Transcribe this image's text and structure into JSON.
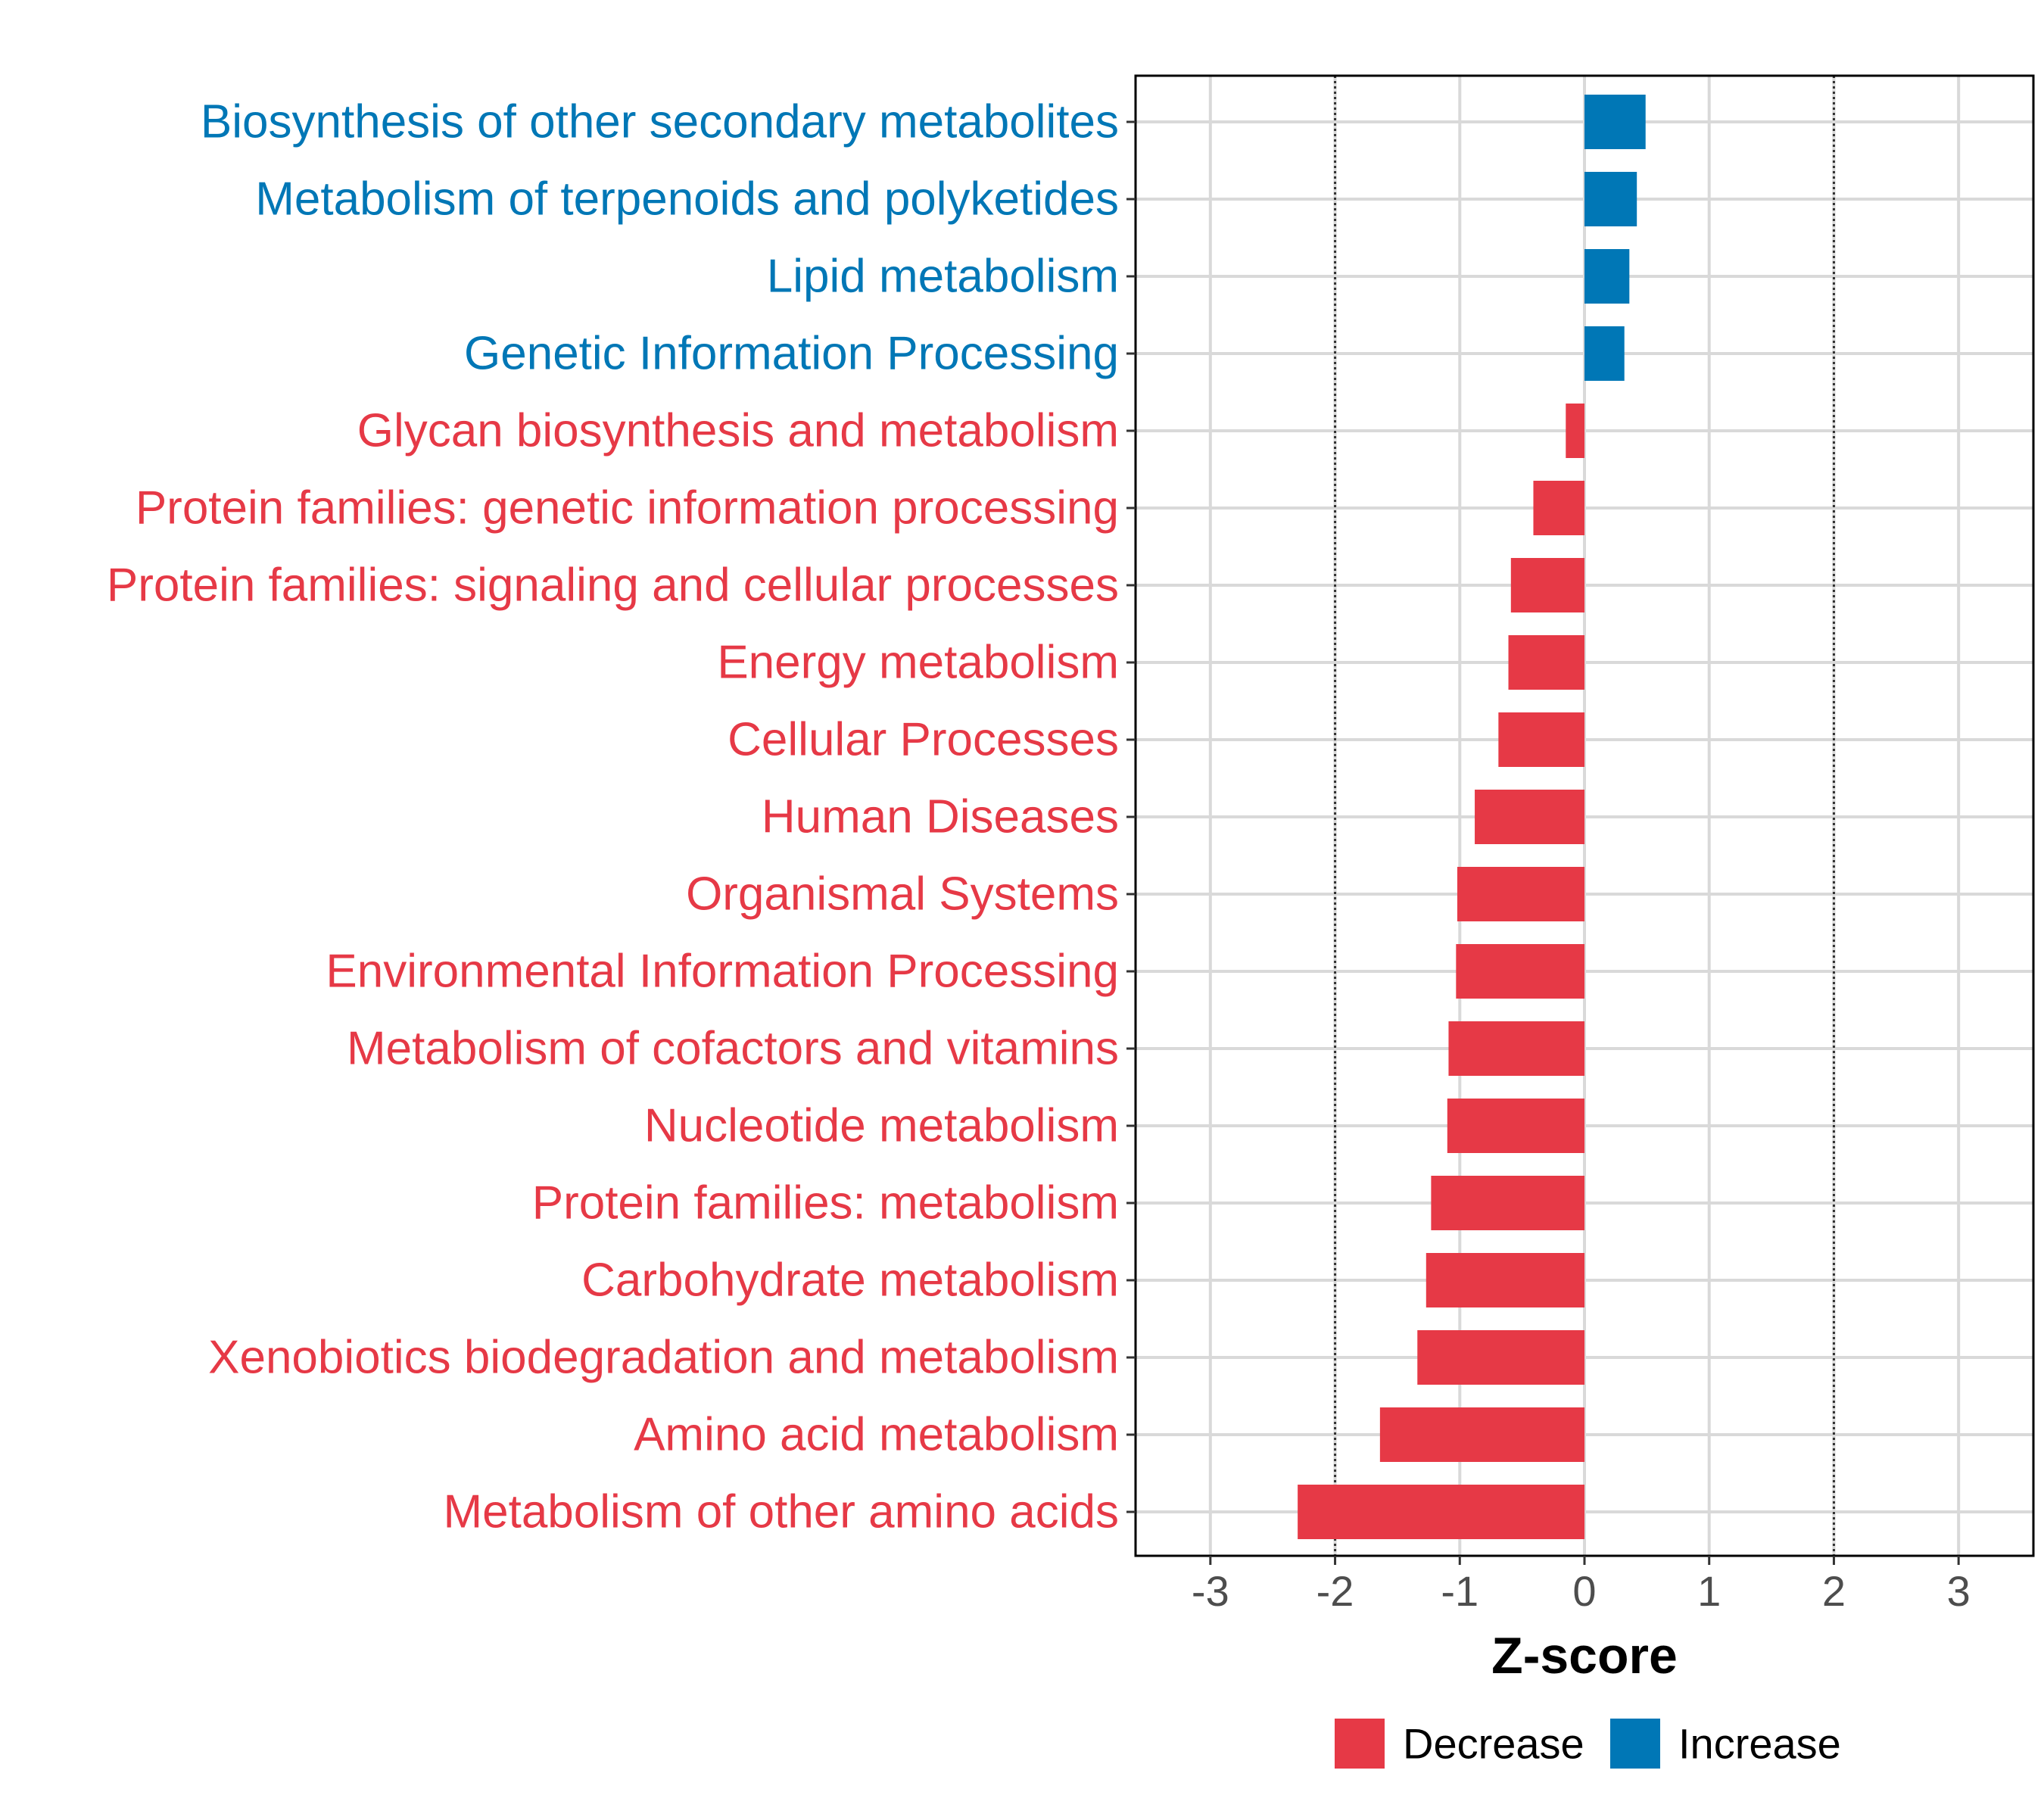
{
  "chart_data": {
    "type": "bar",
    "orientation": "horizontal",
    "title": "",
    "xlabel": "Z-score",
    "ylabel": "",
    "xlim": [
      -3.6,
      3.6
    ],
    "xticks": [
      -3,
      -2,
      -1,
      0,
      1,
      2,
      3
    ],
    "reference_lines": [
      -2,
      2
    ],
    "grid": true,
    "legend_position": "bottom",
    "legend": [
      {
        "label": "Decrease",
        "color": "#e63946"
      },
      {
        "label": "Increase",
        "color": "#0077b6"
      }
    ],
    "categories": [
      "Biosynthesis of other secondary metabolites",
      "Metabolism of terpenoids and polyketides",
      "Lipid metabolism",
      "Genetic Information Processing",
      "Glycan biosynthesis and metabolism",
      "Protein families: genetic information processing",
      "Protein families: signaling and cellular processes",
      "Energy metabolism",
      "Cellular Processes",
      "Human Diseases",
      "Organismal Systems",
      "Environmental Information Processing",
      "Metabolism of cofactors and vitamins",
      "Nucleotide metabolism",
      "Protein families: metabolism",
      "Carbohydrate metabolism",
      "Xenobiotics biodegradation and metabolism",
      "Amino acid metabolism",
      "Metabolism of other amino acids"
    ],
    "values": [
      0.49,
      0.42,
      0.36,
      0.32,
      -0.15,
      -0.41,
      -0.59,
      -0.61,
      -0.69,
      -0.88,
      -1.02,
      -1.03,
      -1.09,
      -1.1,
      -1.23,
      -1.27,
      -1.34,
      -1.64,
      -2.3
    ]
  }
}
